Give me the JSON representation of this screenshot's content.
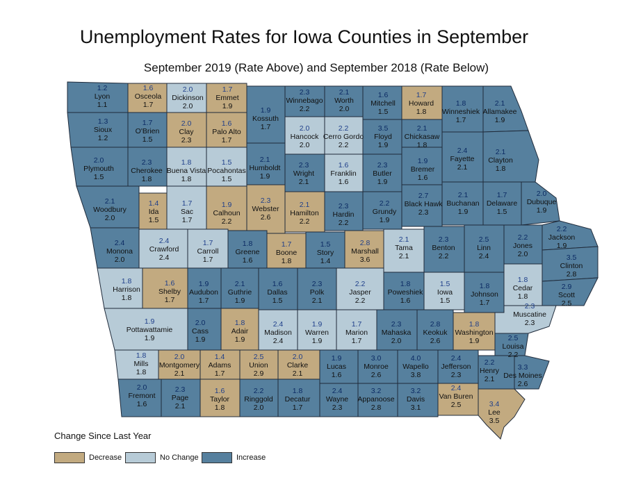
{
  "title": "Unemployment Rates for Iowa Counties in September",
  "subtitle": "September 2019 (Rate Above) and September 2018 (Rate Below)",
  "legend": {
    "title": "Change Since Last Year",
    "items": [
      {
        "label": "Decrease",
        "color": "#c2aa80"
      },
      {
        "label": "No Change",
        "color": "#b7cbd7"
      },
      {
        "label": "Increase",
        "color": "#56809e"
      }
    ]
  },
  "colors": {
    "decrease": "#c2aa80",
    "nochange": "#b7cbd7",
    "increase": "#56809e",
    "rate2019_on_dark": "#0b2a63",
    "rate2019_on_light": "#1f3f8a"
  },
  "counties": [
    {
      "name": "Lyon",
      "r19": "1.2",
      "r18": "1.1",
      "change": "increase"
    },
    {
      "name": "Osceola",
      "r19": "1.6",
      "r18": "1.7",
      "change": "decrease"
    },
    {
      "name": "Dickinson",
      "r19": "2.0",
      "r18": "2.0",
      "change": "nochange"
    },
    {
      "name": "Emmet",
      "r19": "1.7",
      "r18": "1.9",
      "change": "decrease"
    },
    {
      "name": "Kossuth",
      "r19": "1.9",
      "r18": "1.7",
      "change": "increase"
    },
    {
      "name": "Winnebago",
      "r19": "2.3",
      "r18": "2.2",
      "change": "increase"
    },
    {
      "name": "Worth",
      "r19": "2.1",
      "r18": "2.0",
      "change": "increase"
    },
    {
      "name": "Mitchell",
      "r19": "1.6",
      "r18": "1.5",
      "change": "increase"
    },
    {
      "name": "Howard",
      "r19": "1.7",
      "r18": "1.8",
      "change": "decrease"
    },
    {
      "name": "Winneshiek",
      "r19": "1.8",
      "r18": "1.7",
      "change": "increase"
    },
    {
      "name": "Allamakee",
      "r19": "2.1",
      "r18": "1.9",
      "change": "increase"
    },
    {
      "name": "Sioux",
      "r19": "1.3",
      "r18": "1.2",
      "change": "increase"
    },
    {
      "name": "O'Brien",
      "r19": "1.7",
      "r18": "1.5",
      "change": "increase"
    },
    {
      "name": "Clay",
      "r19": "2.0",
      "r18": "2.3",
      "change": "decrease"
    },
    {
      "name": "Palo Alto",
      "r19": "1.6",
      "r18": "1.7",
      "change": "decrease"
    },
    {
      "name": "Hancock",
      "r19": "2.0",
      "r18": "2.0",
      "change": "nochange"
    },
    {
      "name": "Cerro Gordo",
      "r19": "2.2",
      "r18": "2.2",
      "change": "nochange"
    },
    {
      "name": "Floyd",
      "r19": "3.5",
      "r18": "1.9",
      "change": "increase"
    },
    {
      "name": "Chickasaw",
      "r19": "2.1",
      "r18": "1.8",
      "change": "increase"
    },
    {
      "name": "Fayette",
      "r19": "2.4",
      "r18": "2.1",
      "change": "increase"
    },
    {
      "name": "Clayton",
      "r19": "2.1",
      "r18": "1.8",
      "change": "increase"
    },
    {
      "name": "Plymouth",
      "r19": "2.0",
      "r18": "1.5",
      "change": "increase"
    },
    {
      "name": "Cherokee",
      "r19": "2.3",
      "r18": "1.8",
      "change": "increase"
    },
    {
      "name": "Buena Vista",
      "r19": "1.8",
      "r18": "1.8",
      "change": "nochange"
    },
    {
      "name": "Pocahontas",
      "r19": "1.5",
      "r18": "1.5",
      "change": "nochange"
    },
    {
      "name": "Humboldt",
      "r19": "2.1",
      "r18": "1.9",
      "change": "increase"
    },
    {
      "name": "Wright",
      "r19": "2.3",
      "r18": "2.1",
      "change": "increase"
    },
    {
      "name": "Franklin",
      "r19": "1.6",
      "r18": "1.6",
      "change": "nochange"
    },
    {
      "name": "Butler",
      "r19": "2.3",
      "r18": "1.9",
      "change": "increase"
    },
    {
      "name": "Bremer",
      "r19": "1.9",
      "r18": "1.6",
      "change": "increase"
    },
    {
      "name": "Woodbury",
      "r19": "2.1",
      "r18": "2.0",
      "change": "increase"
    },
    {
      "name": "Ida",
      "r19": "1.4",
      "r18": "1.5",
      "change": "decrease"
    },
    {
      "name": "Sac",
      "r19": "1.7",
      "r18": "1.7",
      "change": "nochange"
    },
    {
      "name": "Calhoun",
      "r19": "1.9",
      "r18": "2.2",
      "change": "decrease"
    },
    {
      "name": "Webster",
      "r19": "2.3",
      "r18": "2.6",
      "change": "decrease"
    },
    {
      "name": "Hamilton",
      "r19": "2.1",
      "r18": "2.2",
      "change": "decrease"
    },
    {
      "name": "Hardin",
      "r19": "2.3",
      "r18": "2.2",
      "change": "increase"
    },
    {
      "name": "Grundy",
      "r19": "2.2",
      "r18": "1.9",
      "change": "increase"
    },
    {
      "name": "Black Hawk",
      "r19": "2.7",
      "r18": "2.3",
      "change": "increase"
    },
    {
      "name": "Buchanan",
      "r19": "2.1",
      "r18": "1.9",
      "change": "increase"
    },
    {
      "name": "Delaware",
      "r19": "1.7",
      "r18": "1.5",
      "change": "increase"
    },
    {
      "name": "Dubuque",
      "r19": "2.0",
      "r18": "1.9",
      "change": "increase"
    },
    {
      "name": "Monona",
      "r19": "2.4",
      "r18": "2.0",
      "change": "increase"
    },
    {
      "name": "Crawford",
      "r19": "2.4",
      "r18": "2.4",
      "change": "nochange"
    },
    {
      "name": "Carroll",
      "r19": "1.7",
      "r18": "1.7",
      "change": "nochange"
    },
    {
      "name": "Greene",
      "r19": "1.8",
      "r18": "1.6",
      "change": "increase"
    },
    {
      "name": "Boone",
      "r19": "1.7",
      "r18": "1.8",
      "change": "decrease"
    },
    {
      "name": "Story",
      "r19": "1.5",
      "r18": "1.4",
      "change": "increase"
    },
    {
      "name": "Marshall",
      "r19": "2.8",
      "r18": "3.6",
      "change": "decrease"
    },
    {
      "name": "Tama",
      "r19": "2.1",
      "r18": "2.1",
      "change": "nochange"
    },
    {
      "name": "Benton",
      "r19": "2.3",
      "r18": "2.2",
      "change": "increase"
    },
    {
      "name": "Linn",
      "r19": "2.5",
      "r18": "2.4",
      "change": "increase"
    },
    {
      "name": "Jones",
      "r19": "2.2",
      "r18": "2.0",
      "change": "increase"
    },
    {
      "name": "Jackson",
      "r19": "2.2",
      "r18": "1.9",
      "change": "increase"
    },
    {
      "name": "Harrison",
      "r19": "1.8",
      "r18": "1.8",
      "change": "nochange"
    },
    {
      "name": "Shelby",
      "r19": "1.6",
      "r18": "1.7",
      "change": "decrease"
    },
    {
      "name": "Audubon",
      "r19": "1.9",
      "r18": "1.7",
      "change": "increase"
    },
    {
      "name": "Guthrie",
      "r19": "2.1",
      "r18": "1.9",
      "change": "increase"
    },
    {
      "name": "Dallas",
      "r19": "1.6",
      "r18": "1.5",
      "change": "increase"
    },
    {
      "name": "Polk",
      "r19": "2.3",
      "r18": "2.1",
      "change": "increase"
    },
    {
      "name": "Jasper",
      "r19": "2.2",
      "r18": "2.2",
      "change": "nochange"
    },
    {
      "name": "Poweshiek",
      "r19": "1.8",
      "r18": "1.6",
      "change": "increase"
    },
    {
      "name": "Iowa",
      "r19": "1.5",
      "r18": "1.5",
      "change": "nochange"
    },
    {
      "name": "Johnson",
      "r19": "1.8",
      "r18": "1.7",
      "change": "increase"
    },
    {
      "name": "Cedar",
      "r19": "1.8",
      "r18": "1.8",
      "change": "nochange"
    },
    {
      "name": "Clinton",
      "r19": "3.5",
      "r18": "2.8",
      "change": "increase"
    },
    {
      "name": "Scott",
      "r19": "2.9",
      "r18": "2.5",
      "change": "increase"
    },
    {
      "name": "Pottawattamie",
      "r19": "1.9",
      "r18": "1.9",
      "change": "nochange"
    },
    {
      "name": "Cass",
      "r19": "2.0",
      "r18": "1.9",
      "change": "increase"
    },
    {
      "name": "Adair",
      "r19": "1.8",
      "r18": "1.9",
      "change": "decrease"
    },
    {
      "name": "Madison",
      "r19": "2.4",
      "r18": "2.4",
      "change": "nochange"
    },
    {
      "name": "Warren",
      "r19": "1.9",
      "r18": "1.9",
      "change": "nochange"
    },
    {
      "name": "Marion",
      "r19": "1.7",
      "r18": "1.7",
      "change": "nochange"
    },
    {
      "name": "Mahaska",
      "r19": "2.3",
      "r18": "2.0",
      "change": "increase"
    },
    {
      "name": "Keokuk",
      "r19": "2.8",
      "r18": "2.6",
      "change": "increase"
    },
    {
      "name": "Washington",
      "r19": "1.8",
      "r18": "1.9",
      "change": "decrease"
    },
    {
      "name": "Muscatine",
      "r19": "2.3",
      "r18": "2.3",
      "change": "nochange"
    },
    {
      "name": "Louisa",
      "r19": "2.5",
      "r18": "2.2",
      "change": "increase"
    },
    {
      "name": "Mills",
      "r19": "1.8",
      "r18": "1.8",
      "change": "nochange"
    },
    {
      "name": "Montgomery",
      "r19": "2.0",
      "r18": "2.1",
      "change": "decrease"
    },
    {
      "name": "Adams",
      "r19": "1.4",
      "r18": "1.7",
      "change": "decrease"
    },
    {
      "name": "Union",
      "r19": "2.5",
      "r18": "2.9",
      "change": "decrease"
    },
    {
      "name": "Clarke",
      "r19": "2.0",
      "r18": "2.1",
      "change": "decrease"
    },
    {
      "name": "Lucas",
      "r19": "1.9",
      "r18": "1.6",
      "change": "increase"
    },
    {
      "name": "Monroe",
      "r19": "3.0",
      "r18": "2.6",
      "change": "increase"
    },
    {
      "name": "Wapello",
      "r19": "4.0",
      "r18": "3.8",
      "change": "increase"
    },
    {
      "name": "Jefferson",
      "r19": "2.4",
      "r18": "2.3",
      "change": "increase"
    },
    {
      "name": "Henry",
      "r19": "2.2",
      "r18": "2.1",
      "change": "increase"
    },
    {
      "name": "Des Moines",
      "r19": "3.3",
      "r18": "2.6",
      "change": "increase"
    },
    {
      "name": "Fremont",
      "r19": "2.0",
      "r18": "1.6",
      "change": "increase"
    },
    {
      "name": "Page",
      "r19": "2.3",
      "r18": "2.1",
      "change": "increase"
    },
    {
      "name": "Taylor",
      "r19": "1.6",
      "r18": "1.8",
      "change": "decrease"
    },
    {
      "name": "Ringgold",
      "r19": "2.2",
      "r18": "2.0",
      "change": "increase"
    },
    {
      "name": "Decatur",
      "r19": "1.8",
      "r18": "1.7",
      "change": "increase"
    },
    {
      "name": "Wayne",
      "r19": "2.4",
      "r18": "2.3",
      "change": "increase"
    },
    {
      "name": "Appanoose",
      "r19": "3.2",
      "r18": "2.8",
      "change": "increase"
    },
    {
      "name": "Davis",
      "r19": "3.2",
      "r18": "3.1",
      "change": "increase"
    },
    {
      "name": "Van Buren",
      "r19": "2.4",
      "r18": "2.5",
      "change": "decrease"
    },
    {
      "name": "Lee",
      "r19": "3.4",
      "r18": "3.5",
      "change": "decrease"
    }
  ]
}
